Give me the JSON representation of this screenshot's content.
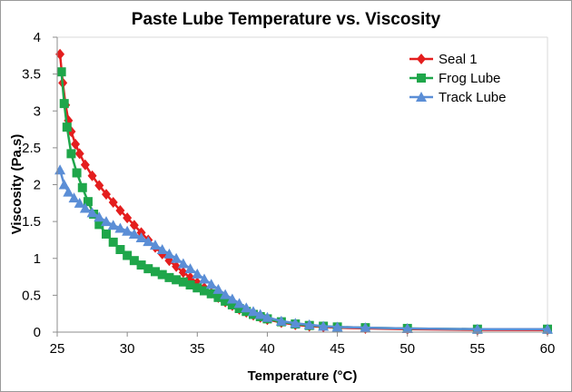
{
  "chart_data": {
    "type": "line",
    "title": "Paste Lube Temperature vs. Viscosity",
    "xlabel": "Temperature (°C)",
    "ylabel": "Viscosity (Pa.s)",
    "xlim": [
      25,
      60
    ],
    "ylim": [
      0,
      4
    ],
    "xticks": [
      "25",
      "30",
      "35",
      "40",
      "45",
      "50",
      "55",
      "60"
    ],
    "yticks": [
      "0",
      "0.5",
      "1",
      "1.5",
      "2",
      "2.5",
      "3",
      "3.5",
      "4"
    ],
    "grid": false,
    "legend_position": "top-right",
    "series": [
      {
        "name": "Seal 1",
        "color": "#e41e1e",
        "marker": "diamond",
        "points": [
          [
            25.2,
            3.77
          ],
          [
            25.4,
            3.38
          ],
          [
            25.6,
            3.08
          ],
          [
            25.8,
            2.87
          ],
          [
            26.0,
            2.72
          ],
          [
            26.3,
            2.55
          ],
          [
            26.6,
            2.42
          ],
          [
            27.0,
            2.27
          ],
          [
            27.5,
            2.12
          ],
          [
            28.0,
            1.99
          ],
          [
            28.5,
            1.87
          ],
          [
            29.0,
            1.76
          ],
          [
            29.5,
            1.65
          ],
          [
            30.0,
            1.55
          ],
          [
            30.5,
            1.45
          ],
          [
            31.0,
            1.35
          ],
          [
            31.5,
            1.25
          ],
          [
            32.0,
            1.15
          ],
          [
            32.5,
            1.06
          ],
          [
            33.0,
            0.97
          ],
          [
            33.5,
            0.89
          ],
          [
            34.0,
            0.81
          ],
          [
            34.5,
            0.74
          ],
          [
            35.0,
            0.67
          ],
          [
            35.5,
            0.6
          ],
          [
            36.0,
            0.53
          ],
          [
            36.5,
            0.47
          ],
          [
            37.0,
            0.41
          ],
          [
            37.5,
            0.36
          ],
          [
            38.0,
            0.31
          ],
          [
            38.5,
            0.27
          ],
          [
            39.0,
            0.23
          ],
          [
            39.5,
            0.2
          ],
          [
            40.0,
            0.17
          ],
          [
            41.0,
            0.13
          ],
          [
            42.0,
            0.1
          ],
          [
            43.0,
            0.08
          ],
          [
            44.0,
            0.07
          ],
          [
            45.0,
            0.06
          ],
          [
            47.0,
            0.05
          ],
          [
            50.0,
            0.04
          ],
          [
            55.0,
            0.03
          ],
          [
            60.0,
            0.03
          ]
        ]
      },
      {
        "name": "Frog Lube",
        "color": "#1fa64a",
        "marker": "square",
        "points": [
          [
            25.3,
            3.53
          ],
          [
            25.5,
            3.1
          ],
          [
            25.7,
            2.78
          ],
          [
            26.0,
            2.42
          ],
          [
            26.4,
            2.16
          ],
          [
            26.8,
            1.96
          ],
          [
            27.2,
            1.77
          ],
          [
            27.6,
            1.6
          ],
          [
            28.0,
            1.46
          ],
          [
            28.5,
            1.33
          ],
          [
            29.0,
            1.22
          ],
          [
            29.5,
            1.12
          ],
          [
            30.0,
            1.04
          ],
          [
            30.5,
            0.97
          ],
          [
            31.0,
            0.91
          ],
          [
            31.5,
            0.86
          ],
          [
            32.0,
            0.82
          ],
          [
            32.5,
            0.78
          ],
          [
            33.0,
            0.74
          ],
          [
            33.5,
            0.71
          ],
          [
            34.0,
            0.68
          ],
          [
            34.5,
            0.64
          ],
          [
            35.0,
            0.6
          ],
          [
            35.5,
            0.56
          ],
          [
            36.0,
            0.52
          ],
          [
            36.5,
            0.47
          ],
          [
            37.0,
            0.42
          ],
          [
            37.5,
            0.37
          ],
          [
            38.0,
            0.32
          ],
          [
            38.5,
            0.28
          ],
          [
            39.0,
            0.24
          ],
          [
            39.5,
            0.21
          ],
          [
            40.0,
            0.18
          ],
          [
            41.0,
            0.14
          ],
          [
            42.0,
            0.11
          ],
          [
            43.0,
            0.09
          ],
          [
            44.0,
            0.08
          ],
          [
            45.0,
            0.07
          ],
          [
            47.0,
            0.06
          ],
          [
            50.0,
            0.05
          ],
          [
            55.0,
            0.04
          ],
          [
            60.0,
            0.04
          ]
        ]
      },
      {
        "name": "Track Lube",
        "color": "#5b8ed6",
        "marker": "triangle",
        "points": [
          [
            25.2,
            2.2
          ],
          [
            25.5,
            2.0
          ],
          [
            25.8,
            1.9
          ],
          [
            26.2,
            1.82
          ],
          [
            26.6,
            1.75
          ],
          [
            27.0,
            1.68
          ],
          [
            27.5,
            1.62
          ],
          [
            28.0,
            1.56
          ],
          [
            28.5,
            1.5
          ],
          [
            29.0,
            1.45
          ],
          [
            29.5,
            1.41
          ],
          [
            30.0,
            1.37
          ],
          [
            30.5,
            1.33
          ],
          [
            31.0,
            1.28
          ],
          [
            31.5,
            1.23
          ],
          [
            32.0,
            1.18
          ],
          [
            32.5,
            1.12
          ],
          [
            33.0,
            1.06
          ],
          [
            33.5,
            1.0
          ],
          [
            34.0,
            0.93
          ],
          [
            34.5,
            0.86
          ],
          [
            35.0,
            0.79
          ],
          [
            35.5,
            0.72
          ],
          [
            36.0,
            0.65
          ],
          [
            36.5,
            0.58
          ],
          [
            37.0,
            0.51
          ],
          [
            37.5,
            0.45
          ],
          [
            38.0,
            0.39
          ],
          [
            38.5,
            0.33
          ],
          [
            39.0,
            0.28
          ],
          [
            39.5,
            0.24
          ],
          [
            40.0,
            0.2
          ],
          [
            41.0,
            0.15
          ],
          [
            42.0,
            0.12
          ],
          [
            43.0,
            0.1
          ],
          [
            44.0,
            0.08
          ],
          [
            45.0,
            0.07
          ],
          [
            47.0,
            0.06
          ],
          [
            50.0,
            0.05
          ],
          [
            55.0,
            0.04
          ],
          [
            60.0,
            0.04
          ]
        ]
      }
    ]
  }
}
